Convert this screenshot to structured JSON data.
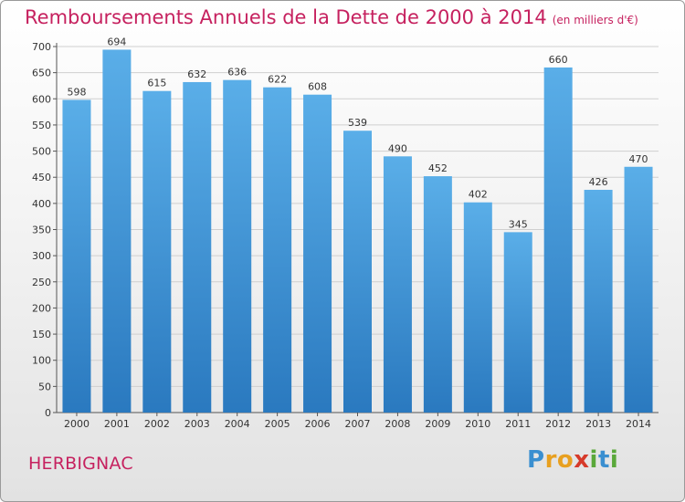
{
  "chart_data": {
    "type": "bar",
    "title": "Remboursements Annuels de la Dette de 2000 à 2014",
    "unit": "(en milliers d'€)",
    "categories": [
      "2000",
      "2001",
      "2002",
      "2003",
      "2004",
      "2005",
      "2006",
      "2007",
      "2008",
      "2009",
      "2010",
      "2011",
      "2012",
      "2013",
      "2014"
    ],
    "values": [
      598,
      694,
      615,
      632,
      636,
      622,
      608,
      539,
      490,
      452,
      402,
      345,
      660,
      426,
      470
    ],
    "ylim": [
      0,
      700
    ],
    "yticks": [
      0,
      50,
      100,
      150,
      200,
      250,
      300,
      350,
      400,
      450,
      500,
      550,
      600,
      650,
      700
    ],
    "grid": true,
    "bar_color_top": "#5aaee8",
    "bar_color_bottom": "#2a79bf"
  },
  "footer": {
    "commune": "HERBIGNAC",
    "brand": [
      "P",
      "r",
      "o",
      "x",
      "i",
      "t",
      "i"
    ],
    "brand_colors": [
      "#3a8fd0",
      "#e8a020",
      "#e8a020",
      "#d63a2a",
      "#5aa83a",
      "#3a8fd0",
      "#5aa83a"
    ]
  },
  "colors": {
    "accent": "#c6215f"
  }
}
